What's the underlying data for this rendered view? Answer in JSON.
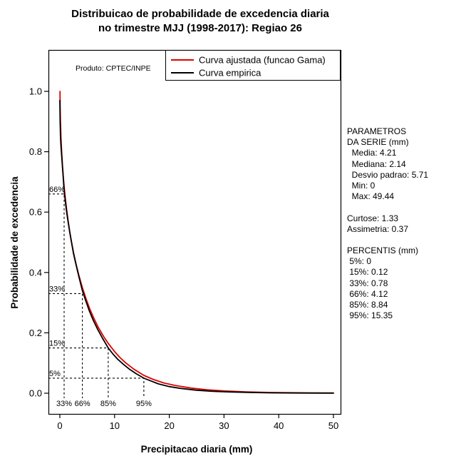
{
  "title": {
    "line1": "Distribuicao de probabilidade de excedencia diaria",
    "line2": "no trimestre MJJ (1998-2017): Regiao 26"
  },
  "plot": {
    "product_label": "Produto: CPTEC/INPE",
    "xlabel": "Precipitacao diaria (mm)",
    "ylabel": "Probabilidade de excedencia",
    "x_ticks": [
      0,
      10,
      20,
      30,
      40,
      50
    ],
    "y_ticks": [
      "0.0",
      "0.2",
      "0.4",
      "0.6",
      "0.8",
      "1.0"
    ],
    "colors": {
      "fitted": "#dd0000",
      "empirical": "#000000",
      "background": "#ffffff"
    }
  },
  "chart_data": {
    "type": "line",
    "title": "Distribuicao de probabilidade de excedencia diaria no trimestre MJJ (1998-2017): Regiao 26",
    "xlabel": "Precipitacao diaria (mm)",
    "ylabel": "Probabilidade de excedencia",
    "xlim": [
      0,
      50
    ],
    "ylim": [
      0,
      1
    ],
    "grid": false,
    "legend_position": "top-right",
    "series": [
      {
        "name": "Curva ajustada (funcao Gama)",
        "color": "#dd0000",
        "points": [
          [
            0.02,
            1.0
          ],
          [
            0.05,
            0.95
          ],
          [
            0.1,
            0.905
          ],
          [
            0.15,
            0.875
          ],
          [
            0.2,
            0.85
          ],
          [
            0.3,
            0.81
          ],
          [
            0.4,
            0.778
          ],
          [
            0.5,
            0.75
          ],
          [
            0.65,
            0.712
          ],
          [
            0.78,
            0.685
          ],
          [
            1.0,
            0.645
          ],
          [
            1.25,
            0.607
          ],
          [
            1.5,
            0.573
          ],
          [
            1.8,
            0.536
          ],
          [
            2.14,
            0.5
          ],
          [
            2.5,
            0.466
          ],
          [
            3.0,
            0.425
          ],
          [
            3.5,
            0.389
          ],
          [
            4.12,
            0.35
          ],
          [
            4.8,
            0.312
          ],
          [
            5.5,
            0.278
          ],
          [
            6.2,
            0.249
          ],
          [
            7.0,
            0.219
          ],
          [
            8.0,
            0.188
          ],
          [
            8.84,
            0.165
          ],
          [
            10,
            0.138
          ],
          [
            11,
            0.118
          ],
          [
            12,
            0.101
          ],
          [
            13.5,
            0.08
          ],
          [
            15.35,
            0.059
          ],
          [
            17,
            0.046
          ],
          [
            19,
            0.034
          ],
          [
            21,
            0.026
          ],
          [
            24,
            0.017
          ],
          [
            27,
            0.011
          ],
          [
            30,
            0.0075
          ],
          [
            34,
            0.0045
          ],
          [
            38,
            0.0027
          ],
          [
            42,
            0.0017
          ],
          [
            46,
            0.001
          ],
          [
            50,
            0.0006
          ]
        ]
      },
      {
        "name": "Curva empirica",
        "color": "#000000",
        "points": [
          [
            0.0,
            0.97
          ],
          [
            0.05,
            0.9
          ],
          [
            0.12,
            0.85
          ],
          [
            0.2,
            0.822
          ],
          [
            0.3,
            0.795
          ],
          [
            0.45,
            0.755
          ],
          [
            0.6,
            0.72
          ],
          [
            0.78,
            0.67
          ],
          [
            0.95,
            0.645
          ],
          [
            1.15,
            0.613
          ],
          [
            1.4,
            0.58
          ],
          [
            1.7,
            0.545
          ],
          [
            2.0,
            0.513
          ],
          [
            2.14,
            0.5
          ],
          [
            2.5,
            0.462
          ],
          [
            2.9,
            0.43
          ],
          [
            3.4,
            0.392
          ],
          [
            4.12,
            0.34
          ],
          [
            4.7,
            0.308
          ],
          [
            5.4,
            0.272
          ],
          [
            6.1,
            0.242
          ],
          [
            6.9,
            0.212
          ],
          [
            7.8,
            0.182
          ],
          [
            8.84,
            0.15
          ],
          [
            9.7,
            0.13
          ],
          [
            10.6,
            0.112
          ],
          [
            11.6,
            0.096
          ],
          [
            12.7,
            0.08
          ],
          [
            14,
            0.064
          ],
          [
            15.35,
            0.05
          ],
          [
            16.6,
            0.041
          ],
          [
            18,
            0.031
          ],
          [
            20,
            0.022
          ],
          [
            22,
            0.016
          ],
          [
            25,
            0.01
          ],
          [
            28,
            0.0065
          ],
          [
            31,
            0.0042
          ],
          [
            35,
            0.0024
          ],
          [
            39,
            0.0013
          ],
          [
            43,
            0.0008
          ],
          [
            47,
            0.0004
          ],
          [
            50,
            0.0003
          ]
        ]
      }
    ],
    "percentile_guides": [
      {
        "prob": 0.66,
        "value": 0.78,
        "left_label": "66%",
        "bottom_label": "33%"
      },
      {
        "prob": 0.33,
        "value": 4.12,
        "left_label": "33%",
        "bottom_label": "66%"
      },
      {
        "prob": 0.15,
        "value": 8.84,
        "left_label": "15%",
        "bottom_label": "85%"
      },
      {
        "prob": 0.05,
        "value": 15.35,
        "left_label": "5%",
        "bottom_label": "95%"
      }
    ]
  },
  "stats_panel": {
    "lines": [
      "PARAMETROS",
      "DA SERIE (mm)",
      "  Media: 4.21",
      "  Mediana: 2.14",
      "  Desvio padrao: 5.71",
      "  Min: 0",
      "  Max: 49.44",
      "",
      "Curtose: 1.33",
      "Assimetria: 0.37",
      "",
      "PERCENTIS (mm)",
      " 5%: 0",
      " 15%: 0.12",
      " 33%: 0.78",
      " 66%: 4.12",
      " 85%: 8.84",
      " 95%: 15.35"
    ]
  }
}
